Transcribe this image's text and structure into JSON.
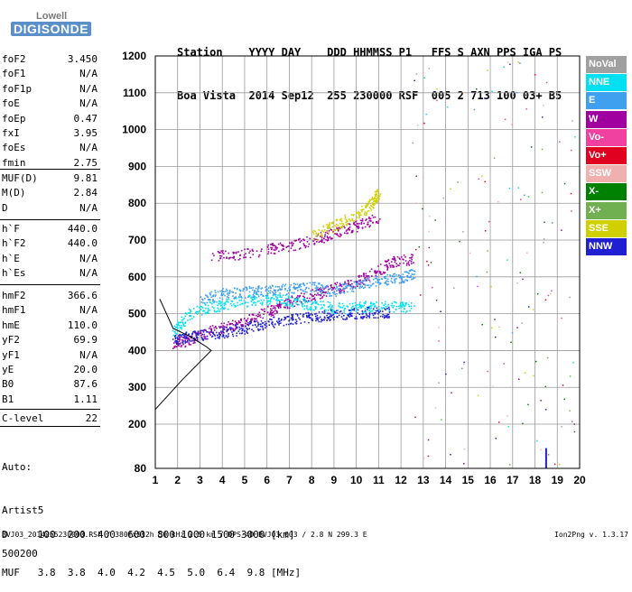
{
  "logo": {
    "top": "Lowell",
    "main": "DIGISONDE"
  },
  "header": {
    "row1": "Station    YYYY DAY    DDD HHMMSS P1   FFS S AXN PPS IGA PS",
    "row2": "Boa Vista  2014 Sep12  255 230000 RSF  005 2 713 100 03+ B5"
  },
  "params_group1": [
    {
      "label": "foF2",
      "value": "3.450"
    },
    {
      "label": "foF1",
      "value": "N/A"
    },
    {
      "label": "foF1p",
      "value": "N/A"
    },
    {
      "label": "foE",
      "value": "N/A"
    },
    {
      "label": "foEp",
      "value": "0.47"
    },
    {
      "label": "fxI",
      "value": "3.95"
    },
    {
      "label": "foEs",
      "value": "N/A"
    },
    {
      "label": "fmin",
      "value": "2.75"
    }
  ],
  "params_group2": [
    {
      "label": "MUF(D)",
      "value": "9.81"
    },
    {
      "label": "M(D)",
      "value": "2.84"
    },
    {
      "label": "D",
      "value": "N/A"
    }
  ],
  "params_group3": [
    {
      "label": "h`F",
      "value": "440.0"
    },
    {
      "label": "h`F2",
      "value": "440.0"
    },
    {
      "label": "h`E",
      "value": "N/A"
    },
    {
      "label": "h`Es",
      "value": "N/A"
    }
  ],
  "params_group4": [
    {
      "label": "hmF2",
      "value": "366.6"
    },
    {
      "label": "hmF1",
      "value": "N/A"
    },
    {
      "label": "hmE",
      "value": "110.0"
    },
    {
      "label": "yF2",
      "value": "69.9"
    },
    {
      "label": "yF1",
      "value": "N/A"
    },
    {
      "label": "yE",
      "value": "20.0"
    },
    {
      "label": "B0",
      "value": "87.6"
    },
    {
      "label": "B1",
      "value": "1.11"
    }
  ],
  "params_group5": [
    {
      "label": "C-level",
      "value": "22"
    }
  ],
  "scaling": {
    "line1": "Auto:",
    "line2": "Artist5",
    "line3": "500200"
  },
  "legend": [
    {
      "label": "NoVal",
      "color": "#a0a0a0"
    },
    {
      "label": "NNE",
      "color": "#00e0f0"
    },
    {
      "label": "E",
      "color": "#40a0f0"
    },
    {
      "label": "W",
      "color": "#a000a0"
    },
    {
      "label": "Vo-",
      "color": "#f040a0"
    },
    {
      "label": "Vo+",
      "color": "#e00020"
    },
    {
      "label": "SSW",
      "color": "#f0b0b0"
    },
    {
      "label": "X-",
      "color": "#008000"
    },
    {
      "label": "X+",
      "color": "#70b050"
    },
    {
      "label": "SSE",
      "color": "#d0d000"
    },
    {
      "label": "NNW",
      "color": "#2020d0"
    }
  ],
  "muf_table": {
    "d_line": "D     100  200  400  600  800 1000 1500 3000 [km]",
    "muf_line": "MUF   3.8  3.8  4.0  4.2  4.5  5.0  6.4  9.8 [MHz]"
  },
  "footer": {
    "left": "BVJ03_2014255230000.RSF / 380fx512h 50 kHz 2.5 km / DPS-4D BVJ03 003 / 2.8 N 299.3 E",
    "right": "Ion2Png v. 1.3.17"
  },
  "chart_data": {
    "type": "scatter",
    "title": "",
    "xlabel": "",
    "ylabel": "",
    "xlim": [
      1,
      20
    ],
    "ylim": [
      80,
      1200
    ],
    "x_ticks": [
      1,
      2,
      3,
      4,
      5,
      6,
      7,
      8,
      9,
      10,
      11,
      12,
      13,
      14,
      15,
      16,
      17,
      18,
      19,
      20
    ],
    "y_ticks": [
      80,
      200,
      300,
      400,
      500,
      600,
      700,
      800,
      900,
      1000,
      1100,
      1200
    ],
    "grid": true,
    "legend_position": "right",
    "traces": [
      {
        "name": "W",
        "color": "#a000a0",
        "points": [
          [
            1.8,
            420
          ],
          [
            2.5,
            430
          ],
          [
            3.5,
            455
          ],
          [
            4.5,
            470
          ],
          [
            5.5,
            495
          ],
          [
            6.5,
            520
          ],
          [
            7.5,
            545
          ],
          [
            8.5,
            560
          ],
          [
            9.5,
            580
          ],
          [
            10.5,
            600
          ],
          [
            11.5,
            640
          ],
          [
            12.5,
            650
          ]
        ]
      },
      {
        "name": "W",
        "color": "#a000a0",
        "points": [
          [
            3.5,
            655
          ],
          [
            5,
            665
          ],
          [
            6.5,
            680
          ],
          [
            8,
            700
          ],
          [
            9,
            720
          ],
          [
            10,
            740
          ],
          [
            11,
            760
          ]
        ]
      },
      {
        "name": "SSE",
        "color": "#d0d000",
        "points": [
          [
            8,
            710
          ],
          [
            9,
            740
          ],
          [
            10,
            770
          ],
          [
            10.7,
            800
          ],
          [
            11,
            830
          ]
        ]
      },
      {
        "name": "NNE",
        "color": "#00e0f0",
        "points": [
          [
            1.8,
            450
          ],
          [
            2.5,
            500
          ],
          [
            3.5,
            520
          ],
          [
            4.5,
            530
          ],
          [
            5.5,
            540
          ],
          [
            6.5,
            540
          ],
          [
            7.5,
            530
          ],
          [
            8.5,
            520
          ],
          [
            9.5,
            515
          ],
          [
            10.5,
            520
          ],
          [
            11.5,
            520
          ],
          [
            12.5,
            520
          ]
        ]
      },
      {
        "name": "E",
        "color": "#40a0f0",
        "points": [
          [
            3,
            540
          ],
          [
            4,
            555
          ],
          [
            5,
            560
          ],
          [
            6,
            565
          ],
          [
            7,
            570
          ],
          [
            8,
            575
          ],
          [
            9,
            560
          ],
          [
            10,
            580
          ],
          [
            11,
            590
          ],
          [
            12,
            600
          ],
          [
            12.6,
            610
          ]
        ]
      },
      {
        "name": "NNW",
        "color": "#2020d0",
        "points": [
          [
            1.8,
            430
          ],
          [
            2.5,
            440
          ],
          [
            3.5,
            445
          ],
          [
            4.5,
            455
          ],
          [
            5.5,
            470
          ],
          [
            6.5,
            480
          ],
          [
            7.5,
            490
          ],
          [
            8.5,
            495
          ],
          [
            9.5,
            500
          ],
          [
            10.5,
            505
          ],
          [
            11.5,
            505
          ]
        ]
      }
    ],
    "profile": [
      [
        1,
        240
      ],
      [
        2.2,
        320
      ],
      [
        3.5,
        400
      ],
      [
        3.3,
        410
      ],
      [
        2.5,
        440
      ],
      [
        1.8,
        460
      ],
      [
        1.2,
        540
      ]
    ]
  }
}
